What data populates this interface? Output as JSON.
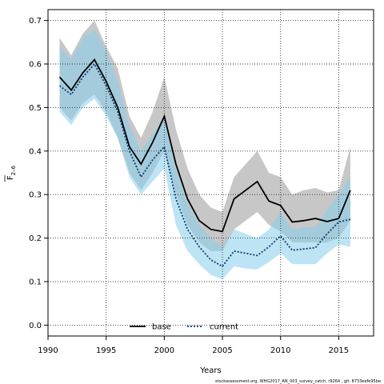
{
  "chart_data": {
    "type": "line",
    "title": "",
    "xlabel": "Years",
    "ylabel_main": "F",
    "ylabel_sub": "2–6",
    "xlim": [
      1990,
      2018
    ],
    "ylim": [
      -0.025,
      0.725
    ],
    "xticks": [
      1990,
      1995,
      2000,
      2005,
      2010,
      2015
    ],
    "yticks": [
      0.0,
      0.1,
      0.2,
      0.3,
      0.4,
      0.5,
      0.6,
      0.7
    ],
    "ytick_labels": [
      "0.0",
      "0.1",
      "0.2",
      "0.3",
      "0.4",
      "0.5",
      "0.6",
      "0.7"
    ],
    "grid": true,
    "legend_position": "bottom-center",
    "x": [
      1991,
      1992,
      1993,
      1994,
      1995,
      1996,
      1997,
      1998,
      1999,
      2000,
      2001,
      2002,
      2003,
      2004,
      2005,
      2006,
      2007,
      2008,
      2009,
      2010,
      2011,
      2012,
      2013,
      2014,
      2015,
      2016
    ],
    "series": [
      {
        "name": "base",
        "color": "#000000",
        "band_color": "#999999",
        "dash": "solid",
        "values": [
          0.57,
          0.54,
          0.58,
          0.61,
          0.56,
          0.5,
          0.41,
          0.37,
          0.42,
          0.48,
          0.37,
          0.29,
          0.24,
          0.22,
          0.215,
          0.29,
          0.31,
          0.33,
          0.285,
          0.275,
          0.237,
          0.24,
          0.245,
          0.238,
          0.245,
          0.31
        ],
        "lower": [
          0.5,
          0.47,
          0.51,
          0.53,
          0.49,
          0.43,
          0.35,
          0.31,
          0.35,
          0.4,
          0.3,
          0.23,
          0.19,
          0.17,
          0.17,
          0.22,
          0.24,
          0.26,
          0.23,
          0.215,
          0.19,
          0.19,
          0.19,
          0.19,
          0.2,
          0.24
        ],
        "upper": [
          0.66,
          0.62,
          0.67,
          0.7,
          0.64,
          0.59,
          0.48,
          0.43,
          0.49,
          0.57,
          0.45,
          0.36,
          0.3,
          0.27,
          0.26,
          0.34,
          0.37,
          0.4,
          0.35,
          0.34,
          0.3,
          0.31,
          0.315,
          0.305,
          0.31,
          0.41
        ]
      },
      {
        "name": "current",
        "color": "#0b3b6e",
        "band_color": "#87ceeb",
        "dash": "dotted",
        "values": [
          0.55,
          0.53,
          0.57,
          0.6,
          0.55,
          0.49,
          0.4,
          0.34,
          0.38,
          0.41,
          0.29,
          0.22,
          0.18,
          0.15,
          0.135,
          0.17,
          0.165,
          0.16,
          0.18,
          0.205,
          0.172,
          0.175,
          0.178,
          0.21,
          0.237,
          0.243
        ],
        "lower": [
          0.49,
          0.46,
          0.5,
          0.52,
          0.48,
          0.43,
          0.34,
          0.3,
          0.33,
          0.36,
          0.23,
          0.17,
          0.14,
          0.115,
          0.105,
          0.135,
          0.13,
          0.128,
          0.145,
          0.165,
          0.14,
          0.14,
          0.14,
          0.165,
          0.185,
          0.18
        ],
        "upper": [
          0.64,
          0.61,
          0.66,
          0.68,
          0.63,
          0.56,
          0.46,
          0.4,
          0.44,
          0.48,
          0.36,
          0.28,
          0.23,
          0.2,
          0.18,
          0.22,
          0.21,
          0.2,
          0.22,
          0.26,
          0.22,
          0.225,
          0.225,
          0.265,
          0.3,
          0.34
        ]
      }
    ],
    "footnote": "stockassessment.org, WHG2017_AN_003_survey_catch, r9264 , git: 8733eefe95be"
  }
}
